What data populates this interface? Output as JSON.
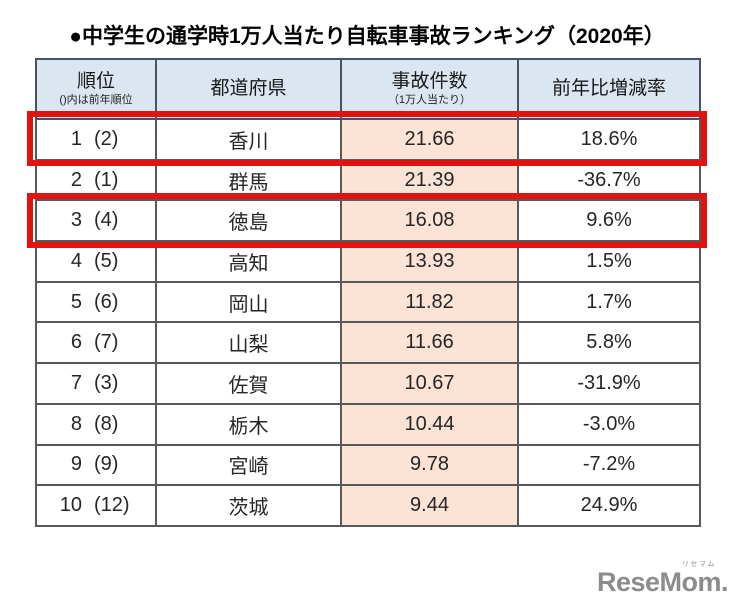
{
  "page": {
    "title": "●中学生の通学時1万人当たり自転車事故ランキング（2020年）"
  },
  "table": {
    "headers": {
      "rank": {
        "label": "順位",
        "sub": "()内は前年順位"
      },
      "prefecture": {
        "label": "都道府県"
      },
      "count": {
        "label": "事故件数",
        "sub": "（1万人当たり）"
      },
      "change": {
        "label": "前年比増減率"
      }
    },
    "rows": [
      {
        "rank": "1",
        "prev": "(2)",
        "pref": "香川",
        "count": "21.66",
        "change": "18.6%",
        "highlighted": true
      },
      {
        "rank": "2",
        "prev": "(1)",
        "pref": "群馬",
        "count": "21.39",
        "change": "-36.7%",
        "highlighted": false
      },
      {
        "rank": "3",
        "prev": "(4)",
        "pref": "徳島",
        "count": "16.08",
        "change": "9.6%",
        "highlighted": true
      },
      {
        "rank": "4",
        "prev": "(5)",
        "pref": "高知",
        "count": "13.93",
        "change": "1.5%",
        "highlighted": false
      },
      {
        "rank": "5",
        "prev": "(6)",
        "pref": "岡山",
        "count": "11.82",
        "change": "1.7%",
        "highlighted": false
      },
      {
        "rank": "6",
        "prev": "(7)",
        "pref": "山梨",
        "count": "11.66",
        "change": "5.8%",
        "highlighted": false
      },
      {
        "rank": "7",
        "prev": "(3)",
        "pref": "佐賀",
        "count": "10.67",
        "change": "-31.9%",
        "highlighted": false
      },
      {
        "rank": "8",
        "prev": "(8)",
        "pref": "栃木",
        "count": "10.44",
        "change": "-3.0%",
        "highlighted": false
      },
      {
        "rank": "9",
        "prev": "(9)",
        "pref": "宮崎",
        "count": "9.78",
        "change": "-7.2%",
        "highlighted": false
      },
      {
        "rank": "10",
        "prev": "(12)",
        "pref": "茨城",
        "count": "9.44",
        "change": "24.9%",
        "highlighted": false
      }
    ]
  },
  "highlight": {
    "color": "#e01311",
    "highlighted_ranks": [
      1,
      3
    ]
  },
  "colors": {
    "header_bg": "#dce6f1",
    "count_column_bg": "#fbe3d5",
    "cell_border": "#595959",
    "header_border": "#44536a",
    "logo_gray": "#8c8c8c"
  },
  "logo": {
    "text": "ReseMom.",
    "kana": "リセマム"
  },
  "chart_data": {
    "type": "table",
    "title": "中学生の通学時1万人当たり自転車事故ランキング（2020年）",
    "columns": [
      "順位（()内は前年順位）",
      "都道府県",
      "事故件数（1万人当たり）",
      "前年比増減率"
    ],
    "rows": [
      {
        "rank": 1,
        "prev_rank": 2,
        "prefecture": "香川",
        "incidents_per_10000": 21.66,
        "yoy_change_pct": 18.6,
        "highlighted": true
      },
      {
        "rank": 2,
        "prev_rank": 1,
        "prefecture": "群馬",
        "incidents_per_10000": 21.39,
        "yoy_change_pct": -36.7,
        "highlighted": false
      },
      {
        "rank": 3,
        "prev_rank": 4,
        "prefecture": "徳島",
        "incidents_per_10000": 16.08,
        "yoy_change_pct": 9.6,
        "highlighted": true
      },
      {
        "rank": 4,
        "prev_rank": 5,
        "prefecture": "高知",
        "incidents_per_10000": 13.93,
        "yoy_change_pct": 1.5,
        "highlighted": false
      },
      {
        "rank": 5,
        "prev_rank": 6,
        "prefecture": "岡山",
        "incidents_per_10000": 11.82,
        "yoy_change_pct": 1.7,
        "highlighted": false
      },
      {
        "rank": 6,
        "prev_rank": 7,
        "prefecture": "山梨",
        "incidents_per_10000": 11.66,
        "yoy_change_pct": 5.8,
        "highlighted": false
      },
      {
        "rank": 7,
        "prev_rank": 3,
        "prefecture": "佐賀",
        "incidents_per_10000": 10.67,
        "yoy_change_pct": -31.9,
        "highlighted": false
      },
      {
        "rank": 8,
        "prev_rank": 8,
        "prefecture": "栃木",
        "incidents_per_10000": 10.44,
        "yoy_change_pct": -3.0,
        "highlighted": false
      },
      {
        "rank": 9,
        "prev_rank": 9,
        "prefecture": "宮崎",
        "incidents_per_10000": 9.78,
        "yoy_change_pct": -7.2,
        "highlighted": false
      },
      {
        "rank": 10,
        "prev_rank": 12,
        "prefecture": "茨城",
        "incidents_per_10000": 9.44,
        "yoy_change_pct": 24.9,
        "highlighted": false
      }
    ]
  }
}
